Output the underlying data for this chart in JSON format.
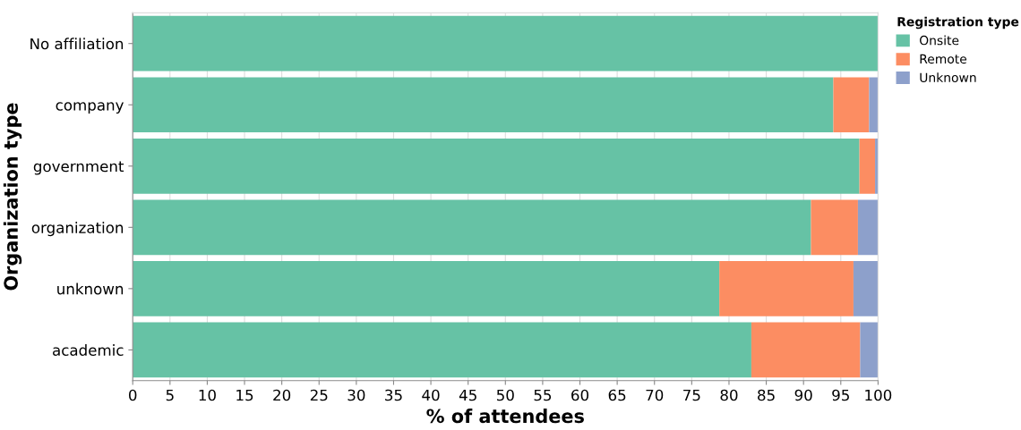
{
  "chart_data": {
    "type": "bar",
    "orientation": "horizontal",
    "stacked": true,
    "xlabel": "% of attendees",
    "ylabel": "Organization type",
    "legend_title": "Registration type",
    "categories": [
      "No affiliation",
      "company",
      "government",
      "organization",
      "unknown",
      "academic"
    ],
    "series": [
      {
        "name": "Onsite",
        "color": "#66c2a5",
        "values": [
          100,
          94.0,
          97.5,
          91.0,
          78.7,
          83.0
        ]
      },
      {
        "name": "Remote",
        "color": "#fc8d62",
        "values": [
          0,
          4.8,
          2.1,
          6.3,
          18.0,
          14.6
        ]
      },
      {
        "name": "Unknown",
        "color": "#8da0cb",
        "values": [
          0,
          1.2,
          0.4,
          2.7,
          3.3,
          2.4
        ]
      }
    ],
    "xlim": [
      0,
      100
    ],
    "xticks": [
      0,
      5,
      10,
      15,
      20,
      25,
      30,
      35,
      40,
      45,
      50,
      55,
      60,
      65,
      70,
      75,
      80,
      85,
      90,
      95,
      100
    ],
    "grid": "x",
    "legend": "top right"
  }
}
